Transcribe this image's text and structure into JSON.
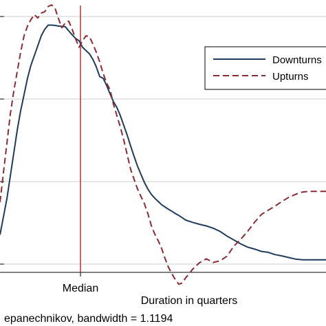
{
  "chart_data": {
    "type": "line",
    "xlabel": "Duration in quarters",
    "note": "epanechnikov, bandwidth = 1.1194",
    "reference_line": {
      "label": "Median",
      "color": "#c0302c"
    },
    "grid": true,
    "legend_position": "top-right",
    "series": [
      {
        "name": "Downturns",
        "color": "#1f3b5c",
        "dash": "solid",
        "x": [
          0,
          10,
          20,
          25,
          30,
          35,
          40,
          45,
          50,
          55,
          60,
          65,
          70,
          75,
          80,
          85,
          90,
          95,
          100,
          105,
          110,
          115,
          120,
          125,
          130,
          135,
          140,
          145,
          150,
          155,
          160,
          165,
          170,
          175,
          180,
          185,
          190,
          195,
          200,
          205,
          210,
          215,
          220,
          225,
          230,
          235,
          240,
          245,
          250,
          255,
          260,
          265,
          270,
          280,
          290,
          300,
          310,
          320,
          330,
          340,
          350,
          360,
          370,
          380,
          390,
          400,
          410,
          420,
          430,
          440,
          450,
          460,
          474
        ],
        "y": [
          0.72,
          0.61,
          0.47,
          0.4,
          0.34,
          0.29,
          0.24,
          0.2,
          0.17,
          0.14,
          0.11,
          0.09,
          0.077,
          0.077,
          0.078,
          0.08,
          0.081,
          0.082,
          0.095,
          0.107,
          0.118,
          0.125,
          0.145,
          0.155,
          0.165,
          0.182,
          0.205,
          0.235,
          0.24,
          0.262,
          0.288,
          0.312,
          0.33,
          0.355,
          0.385,
          0.415,
          0.448,
          0.48,
          0.51,
          0.535,
          0.56,
          0.58,
          0.596,
          0.608,
          0.618,
          0.628,
          0.635,
          0.642,
          0.648,
          0.655,
          0.661,
          0.668,
          0.675,
          0.682,
          0.688,
          0.693,
          0.7,
          0.71,
          0.724,
          0.736,
          0.748,
          0.758,
          0.764,
          0.771,
          0.774,
          0.781,
          0.785,
          0.79,
          0.795,
          0.797,
          0.797,
          0.797,
          0.797
        ]
      },
      {
        "name": "Upturns",
        "color": "#8b2a32",
        "dash": "dashed",
        "x": [
          0,
          5,
          10,
          15,
          20,
          25,
          30,
          35,
          40,
          45,
          50,
          55,
          60,
          65,
          70,
          75,
          80,
          85,
          90,
          95,
          100,
          105,
          110,
          115,
          120,
          125,
          130,
          135,
          140,
          145,
          150,
          155,
          160,
          165,
          170,
          175,
          180,
          185,
          190,
          195,
          200,
          205,
          210,
          215,
          220,
          225,
          230,
          235,
          240,
          245,
          250,
          255,
          260,
          265,
          270,
          275,
          280,
          290,
          300,
          310,
          320,
          330,
          340,
          350,
          360,
          370,
          380,
          390,
          400,
          410,
          420,
          430,
          440,
          450,
          460,
          474
        ],
        "y": [
          0.62,
          0.53,
          0.44,
          0.35,
          0.28,
          0.22,
          0.16,
          0.11,
          0.08,
          0.06,
          0.045,
          0.055,
          0.04,
          0.036,
          0.02,
          0.015,
          0.025,
          0.057,
          0.085,
          0.07,
          0.065,
          0.09,
          0.12,
          0.145,
          0.125,
          0.11,
          0.112,
          0.135,
          0.16,
          0.19,
          0.225,
          0.255,
          0.275,
          0.32,
          0.355,
          0.39,
          0.43,
          0.475,
          0.52,
          0.55,
          0.58,
          0.603,
          0.625,
          0.655,
          0.692,
          0.718,
          0.738,
          0.762,
          0.793,
          0.82,
          0.84,
          0.858,
          0.872,
          0.868,
          0.852,
          0.84,
          0.826,
          0.806,
          0.794,
          0.805,
          0.8,
          0.786,
          0.755,
          0.734,
          0.71,
          0.682,
          0.658,
          0.645,
          0.632,
          0.618,
          0.605,
          0.596,
          0.589,
          0.587,
          0.587,
          0.587
        ]
      }
    ],
    "legend": [
      "Downturns",
      "Upturns"
    ]
  }
}
